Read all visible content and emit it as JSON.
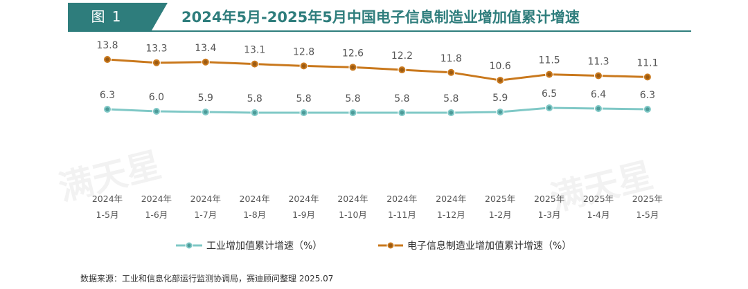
{
  "figure": {
    "tag": "图 1",
    "title": "2024年5月-2025年5月中国电子信息制造业增加值累计增速"
  },
  "chart_data": {
    "type": "line",
    "categories": [
      [
        "2024年",
        "1-5月"
      ],
      [
        "2024年",
        "1-6月"
      ],
      [
        "2024年",
        "1-7月"
      ],
      [
        "2024年",
        "1-8月"
      ],
      [
        "2024年",
        "1-9月"
      ],
      [
        "2024年",
        "1-10月"
      ],
      [
        "2024年",
        "1-11月"
      ],
      [
        "2024年",
        "1-12月"
      ],
      [
        "2025年",
        "1-2月"
      ],
      [
        "2025年",
        "1-3月"
      ],
      [
        "2025年",
        "1-4月"
      ],
      [
        "2025年",
        "1-5月"
      ]
    ],
    "series": [
      {
        "name": "工业增加值累计增速（%）",
        "values": [
          6.3,
          6.0,
          5.9,
          5.8,
          5.8,
          5.8,
          5.8,
          5.8,
          5.9,
          6.5,
          6.4,
          6.3
        ]
      },
      {
        "name": "电子信息制造业增加值累计增速（%）",
        "values": [
          13.8,
          13.3,
          13.4,
          13.1,
          12.8,
          12.6,
          12.2,
          11.8,
          10.6,
          11.5,
          11.3,
          11.1
        ]
      }
    ],
    "legend_position": "bottom",
    "grid": false
  },
  "source": "数据来源：工业和信息化部运行监测协调局，赛迪顾问整理 2025.07",
  "watermark": "满天星",
  "colors": {
    "brand": "#2e7d7c",
    "industry_line": "#7fc8c6",
    "industry_marker": "#4c9a98",
    "electronics_line": "#c9781c",
    "electronics_marker": "#9a5a12",
    "label": "#555555"
  }
}
